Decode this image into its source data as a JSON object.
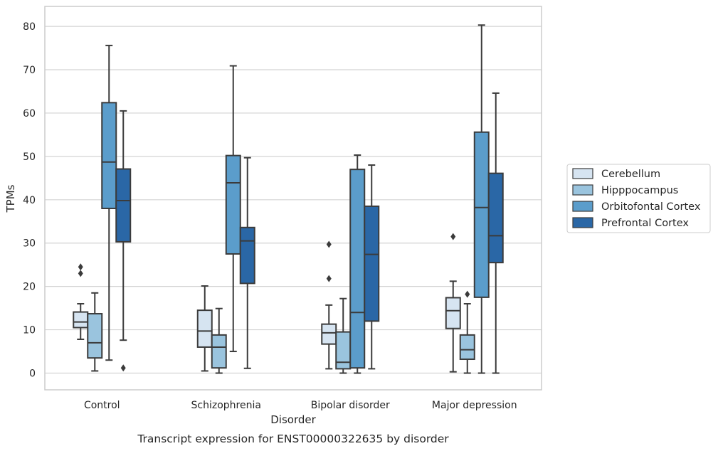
{
  "chart_data": {
    "type": "box",
    "caption": "Transcript expression for ENST00000322635 by disorder",
    "xlabel": "Disorder",
    "ylabel": "TPMs",
    "ylim": [
      -4,
      84
    ],
    "yticks": [
      0,
      10,
      20,
      30,
      40,
      50,
      60,
      70,
      80
    ],
    "grid": "horizontal",
    "legend_position": "right",
    "categories": [
      "Control",
      "Schizophrenia",
      "Bipolar disorder",
      "Major depression"
    ],
    "series": [
      {
        "name": "Cerebellum",
        "color": "#d6e4f1",
        "boxes": [
          {
            "min": 7.8,
            "q1": 10.5,
            "median": 11.8,
            "q3": 14.1,
            "max": 16.0,
            "outliers": [
              24.5,
              23.0
            ]
          },
          {
            "min": 0.5,
            "q1": 6.0,
            "median": 9.7,
            "q3": 14.5,
            "max": 20.1,
            "outliers": []
          },
          {
            "min": 1.0,
            "q1": 6.7,
            "median": 9.3,
            "q3": 11.3,
            "max": 15.7,
            "outliers": [
              29.7,
              21.8
            ]
          },
          {
            "min": 0.3,
            "q1": 10.3,
            "median": 14.4,
            "q3": 17.4,
            "max": 21.2,
            "outliers": [
              31.5
            ]
          }
        ]
      },
      {
        "name": "Hipppocampus",
        "color": "#9ac4de",
        "boxes": [
          {
            "min": 0.5,
            "q1": 3.5,
            "median": 7.0,
            "q3": 13.7,
            "max": 18.5,
            "outliers": []
          },
          {
            "min": 0.0,
            "q1": 1.2,
            "median": 6.0,
            "q3": 8.8,
            "max": 14.9,
            "outliers": []
          },
          {
            "min": 0.0,
            "q1": 1.0,
            "median": 2.5,
            "q3": 9.5,
            "max": 17.2,
            "outliers": []
          },
          {
            "min": 0.0,
            "q1": 3.2,
            "median": 5.4,
            "q3": 8.8,
            "max": 16.0,
            "outliers": [
              18.2
            ]
          }
        ]
      },
      {
        "name": "Orbitofontal Cortex",
        "color": "#5b9dcb",
        "boxes": [
          {
            "min": 3.0,
            "q1": 38.0,
            "median": 48.7,
            "q3": 62.4,
            "max": 75.6,
            "outliers": []
          },
          {
            "min": 5.0,
            "q1": 27.5,
            "median": 43.9,
            "q3": 50.2,
            "max": 70.9,
            "outliers": []
          },
          {
            "min": 0.0,
            "q1": 1.2,
            "median": 14.0,
            "q3": 47.0,
            "max": 50.3,
            "outliers": []
          },
          {
            "min": 0.0,
            "q1": 17.5,
            "median": 38.2,
            "q3": 55.6,
            "max": 80.3,
            "outliers": []
          }
        ]
      },
      {
        "name": "Prefrontal Cortex",
        "color": "#2a67a6",
        "boxes": [
          {
            "min": 7.6,
            "q1": 30.3,
            "median": 39.8,
            "q3": 47.1,
            "max": 60.5,
            "outliers": [
              1.2
            ]
          },
          {
            "min": 1.1,
            "q1": 20.7,
            "median": 30.5,
            "q3": 33.6,
            "max": 49.7,
            "outliers": []
          },
          {
            "min": 1.0,
            "q1": 12.0,
            "median": 27.4,
            "q3": 38.5,
            "max": 48.0,
            "outliers": []
          },
          {
            "min": 0.0,
            "q1": 25.5,
            "median": 31.7,
            "q3": 46.1,
            "max": 64.6,
            "outliers": []
          }
        ]
      }
    ]
  }
}
